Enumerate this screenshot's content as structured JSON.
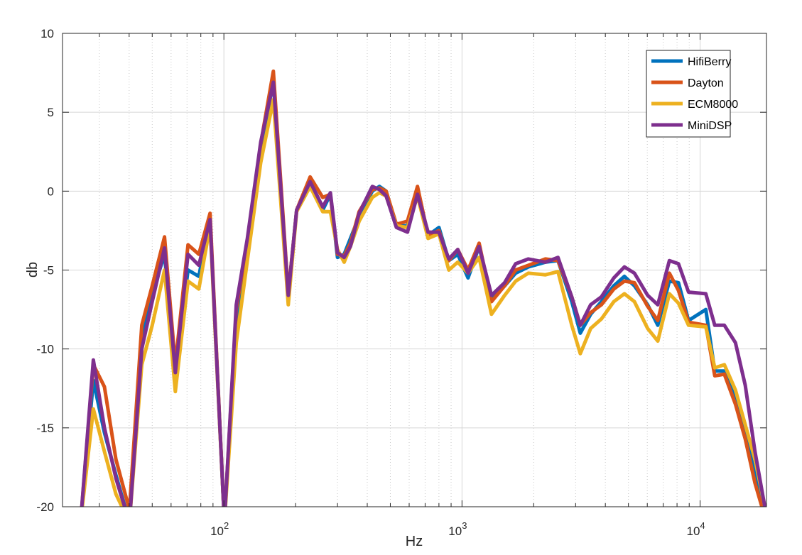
{
  "chart_data": {
    "type": "line",
    "xlabel": "Hz",
    "ylabel": "db",
    "xscale": "log",
    "xlim": [
      21,
      19000
    ],
    "ylim": [
      -20,
      10
    ],
    "grid": true,
    "legend_position": "top-right",
    "x_ticks": [
      {
        "value": 100,
        "base": "10",
        "exp": "2"
      },
      {
        "value": 1000,
        "base": "10",
        "exp": "3"
      },
      {
        "value": 10000,
        "base": "10",
        "exp": "4"
      }
    ],
    "y_ticks": [
      {
        "value": 10,
        "label": "10"
      },
      {
        "value": 5,
        "label": "5"
      },
      {
        "value": 0,
        "label": "0"
      },
      {
        "value": -5,
        "label": "-5"
      },
      {
        "value": -10,
        "label": "-10"
      },
      {
        "value": -15,
        "label": "-15"
      },
      {
        "value": -20,
        "label": "-20"
      }
    ],
    "x": [
      25,
      28.3,
      31.5,
      35.2,
      40.1,
      45.2,
      50,
      56.3,
      62.5,
      70.7,
      78.5,
      87.5,
      100.5,
      112.7,
      125.5,
      142.8,
      161.3,
      186.3,
      202.1,
      230.2,
      260,
      280,
      300,
      320,
      340,
      370,
      420,
      450,
      480,
      530,
      590,
      650,
      720,
      800,
      880,
      960,
      1060,
      1180,
      1330,
      1510,
      1680,
      1900,
      2240,
      2530,
      2890,
      3140,
      3470,
      3850,
      4340,
      4810,
      5300,
      6020,
      6640,
      7430,
      8110,
      8940,
      10570,
      11520,
      12640,
      14070,
      15470,
      17000,
      19000
    ],
    "series": [
      {
        "name": "HifiBerry",
        "color": "#0072BD",
        "values": [
          -21,
          -12,
          -15.3,
          -18,
          -21,
          -9.5,
          -6.5,
          -4,
          -11.4,
          -5,
          -5.4,
          -1.8,
          -21,
          -8,
          -3.5,
          2.5,
          7,
          -6.6,
          -1.2,
          0.5,
          -1.2,
          -0.2,
          -4.2,
          -4,
          -3,
          -1.6,
          0,
          0.3,
          0,
          -2.2,
          -2.2,
          -0.3,
          -2.8,
          -2.3,
          -4.4,
          -4,
          -5.5,
          -3.5,
          -6.9,
          -6,
          -5.2,
          -4.8,
          -4.5,
          -4.4,
          -7,
          -9,
          -7.8,
          -7,
          -6,
          -5.4,
          -6,
          -7.2,
          -8.5,
          -5.7,
          -5.8,
          -8.2,
          -7.5,
          -11.4,
          -11.4,
          -13,
          -15.3,
          -18,
          -21
        ]
      },
      {
        "name": "Dayton",
        "color": "#D95319",
        "values": [
          -21,
          -11,
          -12.4,
          -17,
          -20.2,
          -8.5,
          -6,
          -2.9,
          -11,
          -3.4,
          -4,
          -1.4,
          -21,
          -7.5,
          -3.2,
          3,
          7.6,
          -6.5,
          -1.2,
          0.9,
          -0.4,
          -0.2,
          -4,
          -4.1,
          -3.3,
          -1.3,
          0.1,
          0.2,
          0,
          -2.1,
          -1.9,
          0.3,
          -2.8,
          -2.5,
          -4.4,
          -3.7,
          -5,
          -3.3,
          -7,
          -6,
          -5,
          -4.7,
          -4.3,
          -4.4,
          -6.7,
          -8.5,
          -7.7,
          -7.2,
          -6.2,
          -5.7,
          -5.8,
          -7.3,
          -8.2,
          -5.2,
          -6.3,
          -8.3,
          -8.5,
          -11.7,
          -11.6,
          -13.5,
          -15.7,
          -18.5,
          -21
        ]
      },
      {
        "name": "ECM8000",
        "color": "#EDB120",
        "values": [
          -21,
          -13.8,
          -16.5,
          -19.2,
          -21,
          -11,
          -8.5,
          -5,
          -12.7,
          -5.7,
          -6.2,
          -2.2,
          -21,
          -9.6,
          -4.4,
          1.8,
          5.8,
          -7.2,
          -1.3,
          0.3,
          -1.3,
          -1.3,
          -3.7,
          -4.5,
          -3.5,
          -1.9,
          -0.4,
          -0.1,
          -0.3,
          -2.2,
          -2.3,
          -0.3,
          -3,
          -2.7,
          -5,
          -4.5,
          -5.2,
          -4.2,
          -7.8,
          -6.6,
          -5.7,
          -5.2,
          -5.3,
          -5.1,
          -8.5,
          -10.3,
          -8.7,
          -8.1,
          -7,
          -6.5,
          -7,
          -8.7,
          -9.5,
          -6.5,
          -7.1,
          -8.5,
          -8.6,
          -11.2,
          -11,
          -12.6,
          -14.8,
          -17,
          -20.5
        ]
      },
      {
        "name": "MiniDSP",
        "color": "#7E2F8E",
        "values": [
          -21,
          -10.7,
          -15,
          -18.2,
          -21,
          -10,
          -7,
          -3.6,
          -11.5,
          -4,
          -4.7,
          -1.8,
          -21,
          -7.2,
          -3,
          3.1,
          6.9,
          -6.6,
          -1.2,
          0.6,
          -1,
          -0.1,
          -3.9,
          -4.2,
          -3.5,
          -1.4,
          0.3,
          0.1,
          -0.3,
          -2.3,
          -2.6,
          -0.2,
          -2.6,
          -2.6,
          -4.3,
          -3.7,
          -5.2,
          -3.5,
          -6.6,
          -5.8,
          -4.6,
          -4.3,
          -4.5,
          -4.2,
          -6.7,
          -8.5,
          -7.2,
          -6.7,
          -5.5,
          -4.8,
          -5.2,
          -6.6,
          -7.2,
          -4.4,
          -4.6,
          -6.4,
          -6.5,
          -8.5,
          -8.5,
          -9.6,
          -12.3,
          -16.5,
          -20.6
        ]
      }
    ]
  }
}
